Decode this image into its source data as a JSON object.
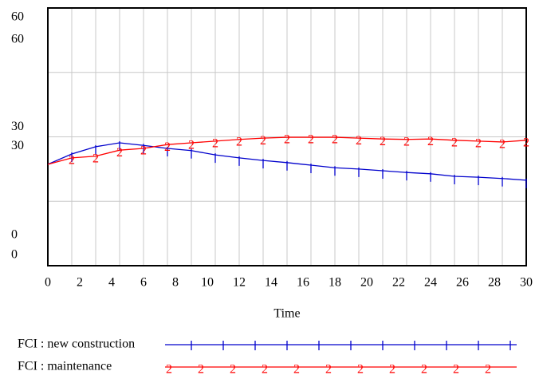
{
  "chart_data": {
    "type": "line",
    "x_label": "Time",
    "x": [
      0,
      1.5,
      3,
      4.5,
      6,
      7.5,
      9,
      10.5,
      12,
      13.5,
      15,
      16.5,
      18,
      19.5,
      21,
      22.5,
      24,
      25.5,
      27,
      28.5,
      30
    ],
    "series": [
      {
        "name": "FCI : new construction",
        "color": "#0000cc",
        "values": [
          23.6,
          26,
          27.7,
          28.6,
          28,
          27.3,
          26.8,
          25.8,
          25.1,
          24.5,
          24,
          23.4,
          22.8,
          22.5,
          22.1,
          21.7,
          21.4,
          20.8,
          20.6,
          20.3,
          19.9
        ]
      },
      {
        "name": "FCI : maintenance",
        "color": "#ff0000",
        "marker": "2",
        "axis": "y2",
        "values": [
          23.6,
          25.1,
          25.5,
          26.9,
          27.3,
          28.2,
          28.6,
          29,
          29.4,
          29.7,
          29.9,
          29.9,
          29.9,
          29.7,
          29.5,
          29.4,
          29.5,
          29.2,
          29,
          28.8,
          29.2
        ]
      }
    ],
    "xlim": [
      0,
      30
    ],
    "xticks": [
      0,
      2,
      4,
      6,
      8,
      10,
      12,
      14,
      16,
      18,
      20,
      22,
      24,
      26,
      28,
      30
    ],
    "xgrid": [
      0,
      1.5,
      3,
      4.5,
      6,
      7.5,
      9,
      10.5,
      12,
      13.5,
      15,
      16.5,
      18,
      19.5,
      21,
      22.5,
      24,
      25.5,
      27,
      28.5,
      30
    ],
    "ylim": [
      0,
      60
    ],
    "yticks": [
      0,
      30,
      60
    ],
    "y2lim": [
      0,
      60
    ],
    "y2ticks": [
      0,
      30,
      60
    ],
    "ygrid": [
      0,
      15,
      30,
      45,
      60
    ],
    "grid": true
  }
}
